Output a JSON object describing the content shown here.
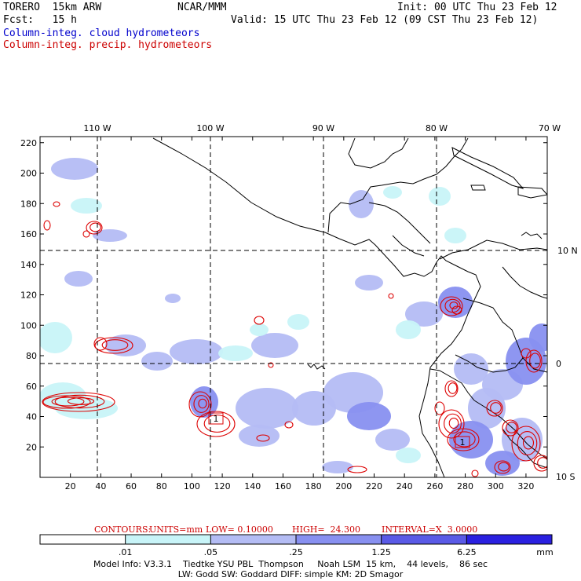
{
  "header": {
    "model_line": "TORERO  15km ARW",
    "org": "NCAR/MMM",
    "init": "Init: 00 UTC Thu 23 Feb 12",
    "fcst": "Fcst:   15 h",
    "valid": "Valid: 15 UTC Thu 23 Feb 12 (09 CST Thu 23 Feb 12)",
    "field1": "Column-integ. cloud hydrometeors",
    "field2": "Column-integ. precip. hydrometeors"
  },
  "map": {
    "lon_labels": [
      "110 W",
      "100 W",
      "90 W",
      "80 W",
      "70 W"
    ],
    "lat_labels": [
      "10 N",
      "0",
      "10 S"
    ],
    "x_ticks": [
      "20",
      "40",
      "60",
      "80",
      "100",
      "120",
      "140",
      "160",
      "180",
      "200",
      "220",
      "240",
      "260",
      "280",
      "300",
      "320"
    ],
    "y_ticks": [
      "20",
      "40",
      "60",
      "80",
      "100",
      "120",
      "140",
      "160",
      "180",
      "200",
      "220"
    ],
    "grid_x_range": [
      0,
      334
    ],
    "grid_y_range": [
      0,
      224
    ],
    "cloud_colors": [
      "#c8f4f8",
      "#b4bcf4",
      "#8890f0",
      "#5a5ae6",
      "#2a20e0"
    ],
    "precip_color": "#dd0000",
    "high_marker": "1"
  },
  "contour_info": {
    "label": "CONTOURS:",
    "units": "UNITS=mm",
    "low": "LOW= 0.10000",
    "high": "HIGH=  24.300",
    "interval": "INTERVAL=X  3.0000"
  },
  "colorbar": {
    "ticks": [
      ".01",
      ".05",
      ".25",
      "1.25",
      "6.25"
    ],
    "unit": "mm",
    "colors": [
      "#ffffff",
      "#c8f4f8",
      "#b4bcf4",
      "#8890f0",
      "#5a5ae6",
      "#2a20e0"
    ]
  },
  "footer": {
    "line1": "Model Info: V3.3.1    Tiedtke YSU PBL  Thompson     Noah LSM  15 km,    44 levels,    86 sec",
    "line2": "LW: Godd SW: Goddard DIFF: simple KM: 2D Smagor"
  }
}
